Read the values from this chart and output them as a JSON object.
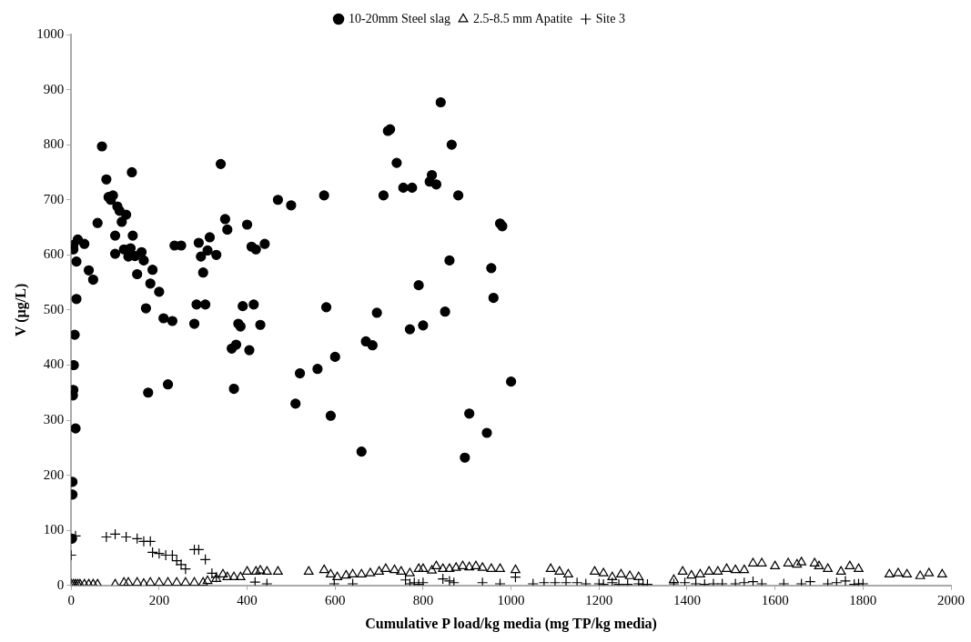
{
  "chart_data": {
    "type": "scatter",
    "xlabel": "Cumulative P load/kg media (mg TP/kg media)",
    "ylabel": "V (µg/L)",
    "xlim": [
      0,
      2000
    ],
    "xticks": [
      0,
      200,
      400,
      600,
      800,
      1000,
      1200,
      1400,
      1600,
      1800,
      2000
    ],
    "ylim": [
      0,
      1000
    ],
    "yticks": [
      0,
      100,
      200,
      300,
      400,
      500,
      600,
      700,
      800,
      900,
      1000
    ],
    "grid": false,
    "legend": "top",
    "series": [
      {
        "name": "10-20mm Steel slag",
        "color": "#000000",
        "marker": "circle",
        "x": [
          2,
          3,
          3,
          4,
          5,
          6,
          8,
          12,
          10,
          5,
          5,
          15,
          12,
          30,
          40,
          50,
          60,
          70,
          80,
          85,
          90,
          95,
          100,
          100,
          105,
          110,
          115,
          120,
          125,
          130,
          135,
          138,
          140,
          145,
          150,
          160,
          165,
          170,
          175,
          180,
          185,
          200,
          210,
          220,
          230,
          235,
          250,
          280,
          285,
          290,
          295,
          300,
          305,
          310,
          315,
          330,
          340,
          350,
          355,
          365,
          370,
          375,
          380,
          385,
          390,
          400,
          405,
          410,
          415,
          420,
          430,
          440,
          470,
          500,
          510,
          520,
          560,
          575,
          580,
          590,
          600,
          660,
          670,
          685,
          695,
          710,
          720,
          725,
          740,
          755,
          770,
          775,
          790,
          800,
          815,
          820,
          830,
          840,
          850,
          860,
          865,
          880,
          895,
          905,
          945,
          955,
          960,
          975,
          980,
          1000
        ],
        "values": [
          85,
          165,
          188,
          345,
          355,
          400,
          455,
          520,
          285,
          610,
          618,
          628,
          588,
          620,
          572,
          555,
          658,
          797,
          737,
          705,
          700,
          708,
          635,
          602,
          688,
          680,
          660,
          610,
          673,
          597,
          612,
          750,
          635,
          598,
          565,
          605,
          590,
          503,
          350,
          548,
          573,
          533,
          485,
          365,
          480,
          617,
          617,
          475,
          510,
          622,
          597,
          568,
          510,
          608,
          632,
          600,
          765,
          665,
          646,
          430,
          357,
          437,
          475,
          470,
          507,
          655,
          427,
          615,
          510,
          610,
          473,
          620,
          700,
          690,
          330,
          385,
          393,
          708,
          505,
          308,
          415,
          243,
          443,
          436,
          495,
          708,
          825,
          828,
          767,
          722,
          465,
          722,
          545,
          472,
          733,
          745,
          728,
          877,
          497,
          590,
          800,
          708,
          232,
          312,
          277,
          576,
          522,
          657,
          652,
          370
        ]
      },
      {
        "name": "2.5-8.5 mm Apatite",
        "color": "#000000",
        "marker": "triangle",
        "x": [
          0,
          5,
          10,
          15,
          20,
          30,
          40,
          50,
          60,
          100,
          120,
          130,
          150,
          165,
          180,
          200,
          220,
          240,
          260,
          280,
          300,
          310,
          330,
          345,
          355,
          370,
          385,
          400,
          420,
          430,
          445,
          470,
          540,
          575,
          590,
          605,
          625,
          640,
          660,
          680,
          700,
          715,
          735,
          750,
          770,
          790,
          800,
          820,
          830,
          845,
          860,
          875,
          890,
          905,
          920,
          935,
          955,
          975,
          1010,
          1090,
          1110,
          1130,
          1190,
          1210,
          1230,
          1250,
          1270,
          1290,
          1370,
          1390,
          1410,
          1430,
          1450,
          1470,
          1490,
          1510,
          1530,
          1550,
          1570,
          1600,
          1630,
          1650,
          1660,
          1690,
          1700,
          1720,
          1750,
          1770,
          1790,
          1860,
          1880,
          1900,
          1930,
          1950,
          1980
        ],
        "values": [
          2,
          2,
          2,
          2,
          2,
          2,
          2,
          2,
          2,
          2,
          5,
          5,
          5,
          3,
          5,
          5,
          5,
          5,
          5,
          5,
          5,
          8,
          12,
          20,
          15,
          15,
          15,
          25,
          25,
          27,
          25,
          25,
          25,
          28,
          20,
          15,
          18,
          20,
          20,
          22,
          25,
          30,
          28,
          25,
          22,
          30,
          30,
          27,
          35,
          30,
          30,
          32,
          35,
          33,
          35,
          32,
          30,
          30,
          28,
          30,
          25,
          20,
          25,
          22,
          15,
          20,
          17,
          15,
          10,
          25,
          18,
          20,
          25,
          25,
          30,
          28,
          28,
          40,
          40,
          35,
          40,
          38,
          42,
          40,
          35,
          30,
          25,
          35,
          30,
          20,
          22,
          20,
          17,
          22,
          20
        ]
      },
      {
        "name": "Site 3",
        "color": "#000000",
        "marker": "cross",
        "x": [
          0,
          10,
          80,
          100,
          125,
          150,
          165,
          180,
          185,
          200,
          215,
          230,
          240,
          250,
          260,
          280,
          290,
          305,
          320,
          330,
          418,
          445,
          598,
          640,
          760,
          770,
          780,
          790,
          800,
          845,
          860,
          870,
          935,
          975,
          1010,
          1050,
          1075,
          1100,
          1125,
          1150,
          1170,
          1200,
          1210,
          1230,
          1245,
          1265,
          1290,
          1300,
          1310,
          1370,
          1395,
          1420,
          1440,
          1460,
          1480,
          1510,
          1530,
          1550,
          1570,
          1620,
          1660,
          1680,
          1720,
          1740,
          1760,
          1780,
          1790,
          1800
        ],
        "values": [
          55,
          90,
          88,
          93,
          88,
          85,
          80,
          80,
          60,
          58,
          55,
          55,
          45,
          38,
          30,
          65,
          65,
          47,
          22,
          15,
          6,
          3,
          3,
          3,
          10,
          3,
          5,
          2,
          5,
          12,
          8,
          5,
          5,
          3,
          15,
          3,
          5,
          5,
          5,
          5,
          3,
          3,
          2,
          5,
          2,
          2,
          3,
          2,
          2,
          3,
          5,
          3,
          2,
          3,
          3,
          3,
          5,
          7,
          3,
          3,
          3,
          7,
          3,
          5,
          8,
          2,
          3,
          3
        ]
      }
    ]
  }
}
